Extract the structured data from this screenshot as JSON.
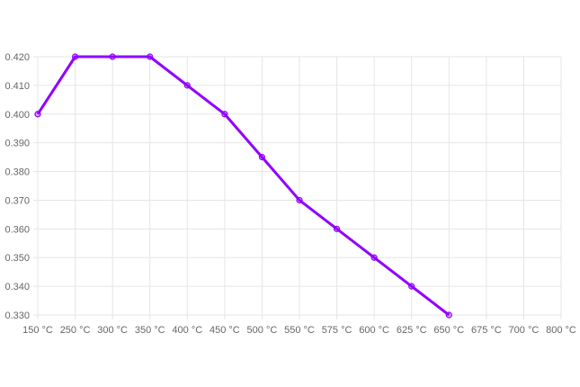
{
  "chart_data": {
    "type": "line",
    "title": "",
    "xlabel": "",
    "ylabel": "",
    "categories": [
      "150 °C",
      "250 °C",
      "300 °C",
      "350 °C",
      "400 °C",
      "450 °C",
      "500 °C",
      "550 °C",
      "575 °C",
      "600 °C",
      "625 °C",
      "650 °C",
      "675 °C",
      "700 °C",
      "800 °C"
    ],
    "series": [
      {
        "values": [
          0.4,
          0.42,
          0.42,
          0.42,
          0.41,
          0.4,
          0.385,
          0.37,
          0.36,
          0.35,
          0.34,
          0.33,
          null,
          null,
          null
        ]
      }
    ],
    "ylim": [
      0.33,
      0.42
    ],
    "yticks": [
      "0.330",
      "0.340",
      "0.350",
      "0.360",
      "0.370",
      "0.380",
      "0.390",
      "0.400",
      "0.410",
      "0.420"
    ],
    "grid": true,
    "legend": "none",
    "colors": {
      "line": "#9100ff",
      "grid": "#e5e5e5",
      "tick_text": "#666666"
    }
  }
}
